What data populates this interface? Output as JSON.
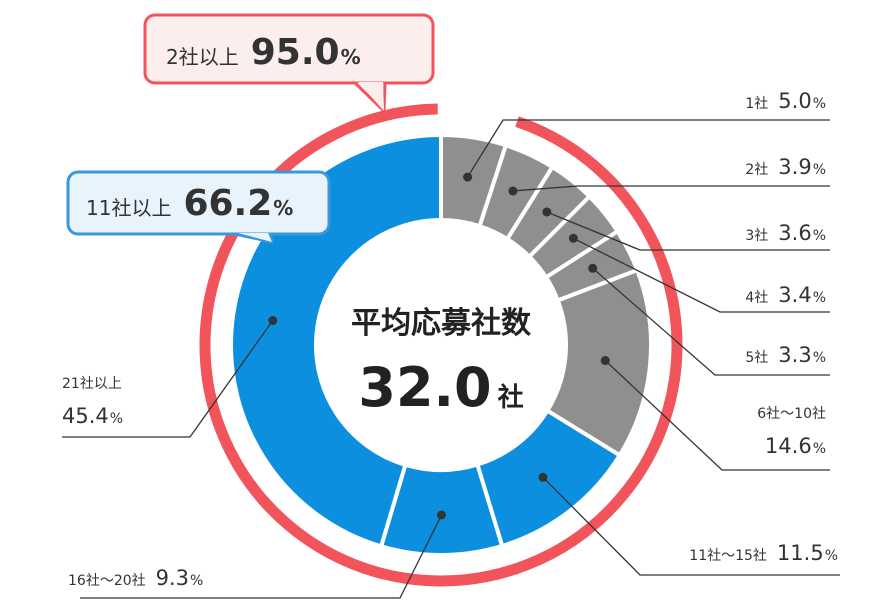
{
  "chart_data": {
    "type": "pie",
    "center": {
      "title": "平均応募社数",
      "value": "32.0",
      "unit": "社"
    },
    "slices": [
      {
        "name": "1社",
        "value": 5.0,
        "color": "#8f8f8f"
      },
      {
        "name": "2社",
        "value": 3.9,
        "color": "#8f8f8f"
      },
      {
        "name": "3社",
        "value": 3.6,
        "color": "#8f8f8f"
      },
      {
        "name": "4社",
        "value": 3.4,
        "color": "#8f8f8f"
      },
      {
        "name": "5社",
        "value": 3.3,
        "color": "#8f8f8f"
      },
      {
        "name": "6社〜10社",
        "value": 14.6,
        "color": "#8f8f8f"
      },
      {
        "name": "11社〜15社",
        "value": 11.5,
        "color": "#0d8fe0"
      },
      {
        "name": "16社〜20社",
        "value": 9.3,
        "color": "#0d8fe0"
      },
      {
        "name": "21社以上",
        "value": 45.4,
        "color": "#0d8fe0"
      }
    ],
    "groups": [
      {
        "name": "2社以上",
        "value": 95.0,
        "color": "#f2545b",
        "range": "2社〜21社以上"
      },
      {
        "name": "11社以上",
        "value": 66.2,
        "color": "#3a97d8",
        "range": "11社〜21社以上"
      }
    ],
    "unit": "%"
  }
}
